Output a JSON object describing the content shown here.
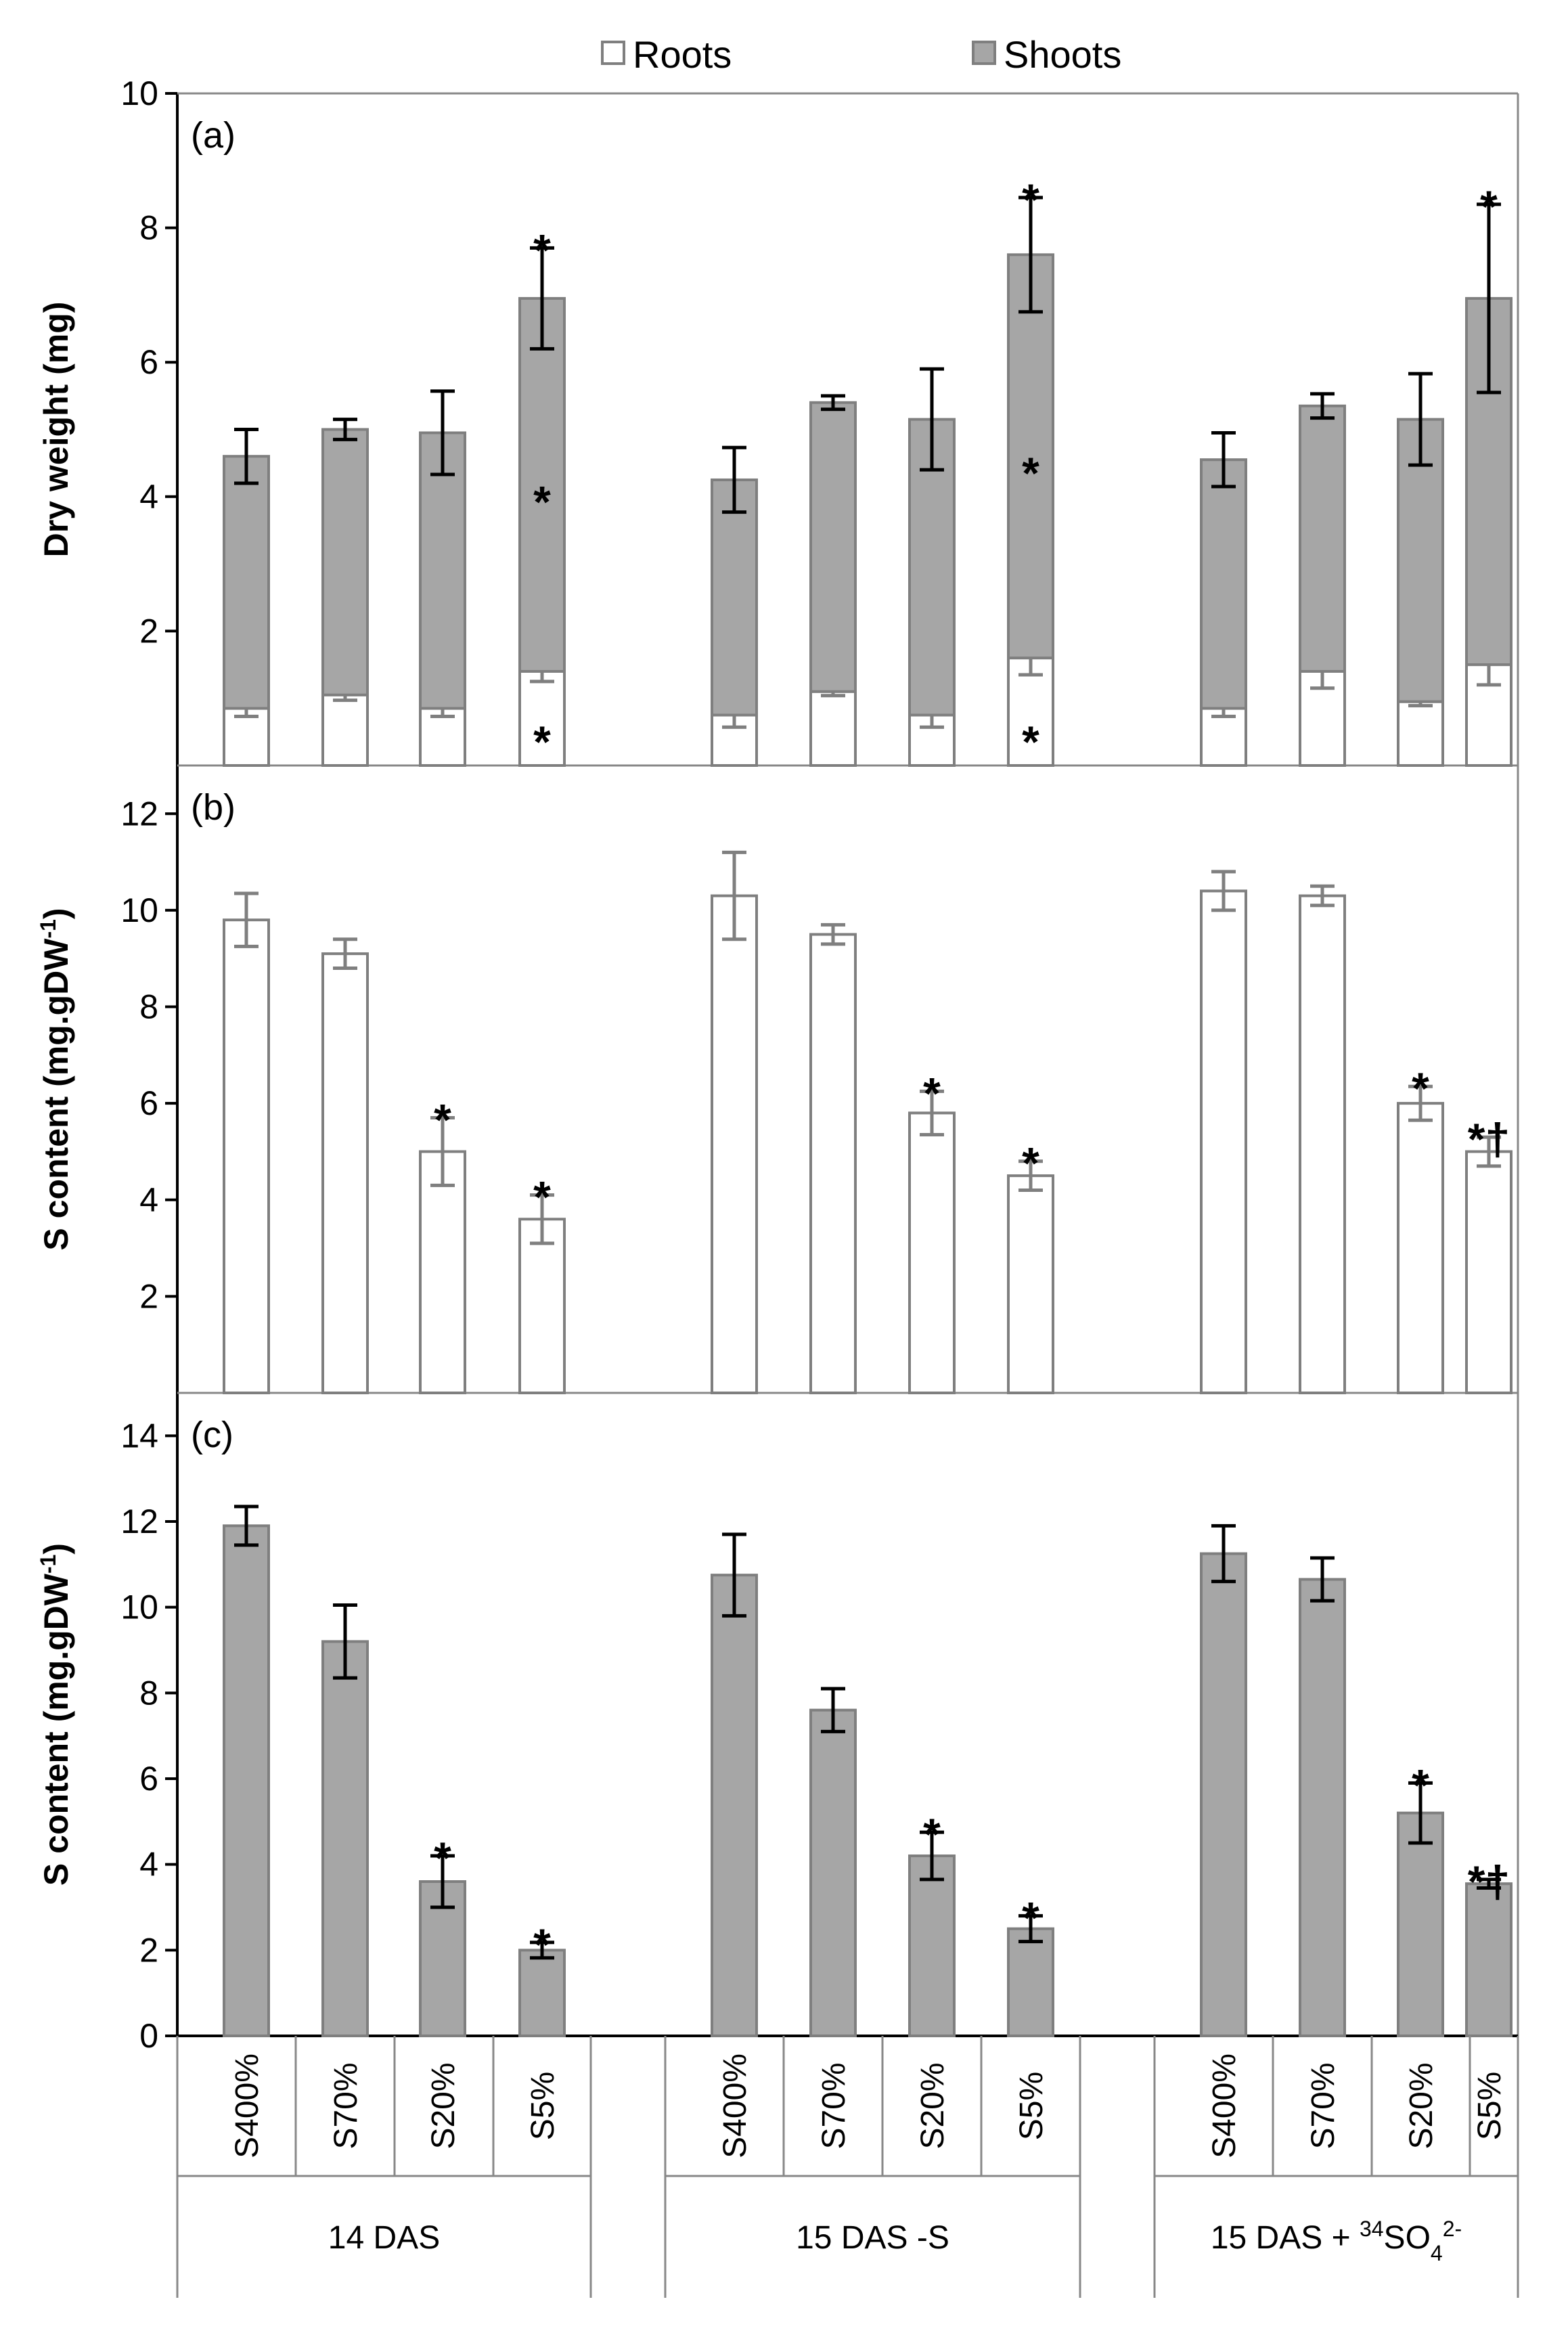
{
  "chart_data": {
    "type": "bar",
    "legend": {
      "placement": "top",
      "entries": [
        {
          "name": "Roots",
          "color": "#ffffff"
        },
        {
          "name": "Shoots",
          "color": "#a6a6a6"
        }
      ]
    },
    "groups": [
      {
        "name_main": "14 DAS",
        "name_sup": "",
        "name_sub": "",
        "name_sup2": "",
        "name_tail": ""
      },
      {
        "name_main": "15 DAS -S",
        "name_sup": "",
        "name_sub": "",
        "name_sup2": "",
        "name_tail": ""
      },
      {
        "name_main": "15 DAS + ",
        "name_sup": "34",
        "name_sub": "4",
        "name_sup2": "2-",
        "name_tail": "SO"
      }
    ],
    "categories": [
      "S400%",
      "S70%",
      "S20%",
      "S5%"
    ],
    "panels": [
      {
        "id": "a",
        "label": "(a)",
        "ylabel": "Dry weight (mg)",
        "ylabel_sup": "",
        "ylim": [
          0,
          10
        ],
        "yticks": [
          2,
          4,
          6,
          8,
          10
        ],
        "stacked": true,
        "series": [
          {
            "name": "Roots",
            "color": "#ffffff",
            "edge": "#7f7f7f",
            "values": [
              [
                0.85,
                1.05,
                0.85,
                1.4
              ],
              [
                0.75,
                1.1,
                0.75,
                1.6
              ],
              [
                0.85,
                1.4,
                0.95,
                1.5
              ]
            ],
            "errors": [
              [
                0.12,
                0.08,
                0.12,
                0.15
              ],
              [
                0.18,
                0.06,
                0.18,
                0.25
              ],
              [
                0.12,
                0.25,
                0.06,
                0.3
              ]
            ],
            "sig": [
              [
                "",
                "",
                "",
                "*"
              ],
              [
                "",
                "",
                "",
                "*"
              ],
              [
                "",
                "",
                "",
                ""
              ]
            ]
          },
          {
            "name": "Shoots",
            "color": "#a6a6a6",
            "edge": "#7f7f7f",
            "values": [
              [
                3.75,
                3.95,
                4.1,
                5.55
              ],
              [
                3.5,
                4.3,
                4.4,
                6.0
              ],
              [
                3.7,
                3.95,
                4.2,
                5.45
              ]
            ],
            "errors": [
              [
                0.4,
                0.15,
                0.62,
                0.75
              ],
              [
                0.48,
                0.1,
                0.75,
                0.85
              ],
              [
                0.4,
                0.18,
                0.68,
                1.4
              ]
            ],
            "sig_mid": [
              [
                "",
                "",
                "",
                "*"
              ],
              [
                "",
                "",
                "",
                "*"
              ],
              [
                "",
                "",
                "",
                ""
              ]
            ],
            "sig": [
              [
                "",
                "",
                "",
                "*"
              ],
              [
                "",
                "",
                "",
                "*"
              ],
              [
                "",
                "",
                "",
                "*"
              ]
            ]
          }
        ]
      },
      {
        "id": "b",
        "label": "(b)",
        "ylabel": "S content (mg.gDW",
        "ylabel_sup": "-1",
        "ylim": [
          0,
          13
        ],
        "yticks": [
          2,
          4,
          6,
          8,
          10,
          12
        ],
        "stacked": false,
        "series": [
          {
            "name": "Roots",
            "color": "#ffffff",
            "edge": "#7f7f7f",
            "values": [
              [
                9.8,
                9.1,
                5.0,
                3.6
              ],
              [
                10.3,
                9.5,
                5.8,
                4.5
              ],
              [
                10.4,
                10.3,
                6.0,
                5.0
              ]
            ],
            "errors": [
              [
                0.55,
                0.3,
                0.7,
                0.5
              ],
              [
                0.9,
                0.2,
                0.45,
                0.3
              ],
              [
                0.4,
                0.2,
                0.35,
                0.3
              ]
            ],
            "sig": [
              [
                "",
                "",
                "*",
                "*"
              ],
              [
                "",
                "",
                "*",
                "*"
              ],
              [
                "",
                "",
                "*",
                "*†"
              ]
            ]
          }
        ]
      },
      {
        "id": "c",
        "label": "(c)",
        "ylabel": "S content (mg.gDW",
        "ylabel_sup": "-1",
        "ylim": [
          0,
          15
        ],
        "yticks": [
          0,
          2,
          4,
          6,
          8,
          10,
          12,
          14
        ],
        "stacked": false,
        "series": [
          {
            "name": "Shoots",
            "color": "#a6a6a6",
            "edge": "#7f7f7f",
            "values": [
              [
                11.9,
                9.2,
                3.6,
                2.0
              ],
              [
                10.75,
                7.6,
                4.2,
                2.5
              ],
              [
                11.25,
                10.65,
                5.2,
                3.55
              ]
            ],
            "errors": [
              [
                0.45,
                0.85,
                0.6,
                0.18
              ],
              [
                0.95,
                0.5,
                0.55,
                0.3
              ],
              [
                0.65,
                0.5,
                0.7,
                0.1
              ]
            ],
            "sig": [
              [
                "",
                "",
                "*",
                "*"
              ],
              [
                "",
                "",
                "*",
                "*"
              ],
              [
                "",
                "",
                "*",
                "*†"
              ]
            ]
          }
        ]
      }
    ]
  }
}
